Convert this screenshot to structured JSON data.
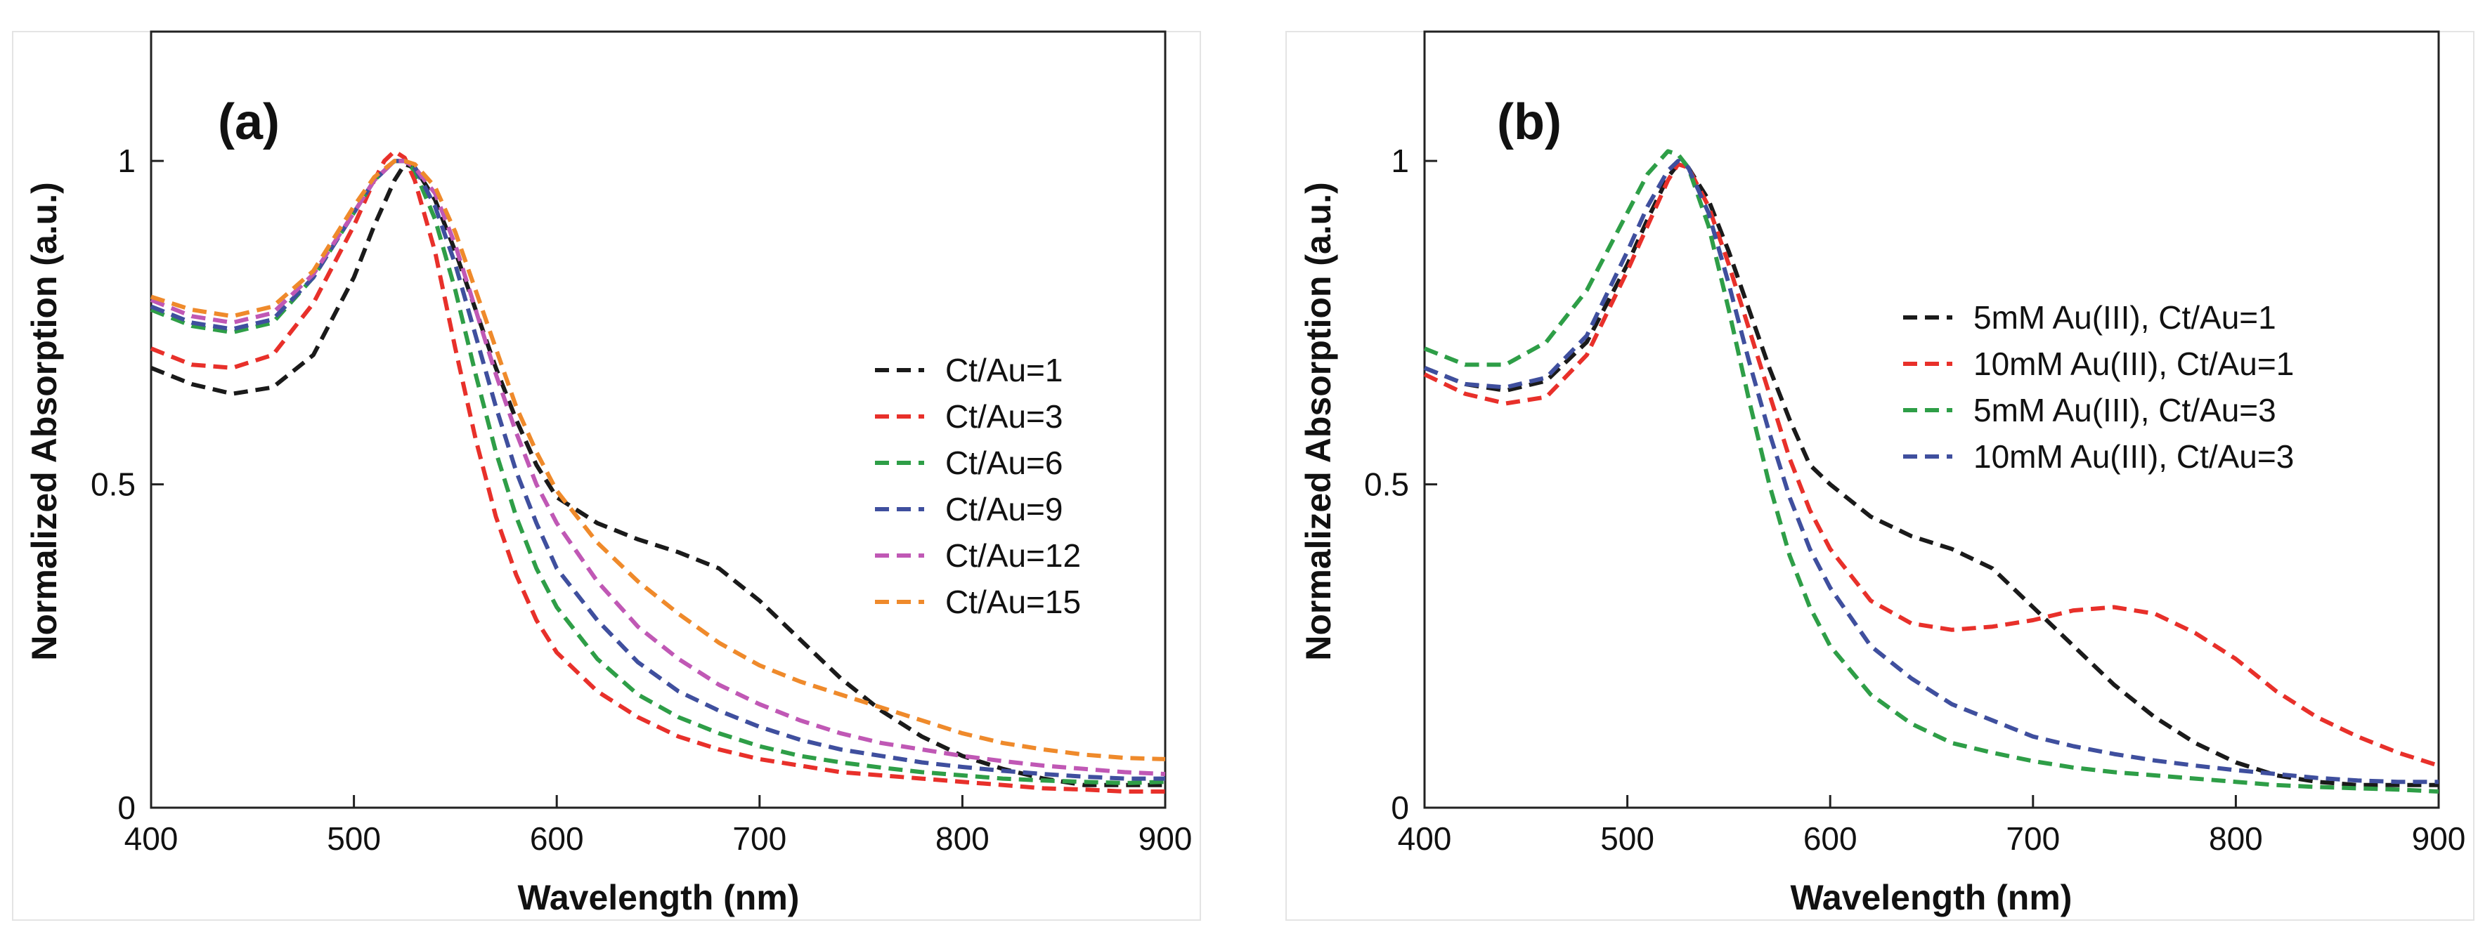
{
  "figure": {
    "panel_count": 2
  },
  "chart_data": [
    {
      "type": "line",
      "panel_label": "(a)",
      "xlabel": "Wavelength (nm)",
      "ylabel": "Normalized Absorption (a.u.)",
      "xlim": [
        400,
        900
      ],
      "ylim": [
        0,
        1.2
      ],
      "xticks": [
        400,
        500,
        600,
        700,
        800,
        900
      ],
      "xtick_labels": [
        "400",
        "500",
        "600",
        "700",
        "800",
        "900"
      ],
      "yticks": [
        0,
        0.5,
        1
      ],
      "ytick_labels": [
        "0",
        "0.5",
        "1"
      ],
      "grid": false,
      "legend_position": "right-middle",
      "series": [
        {
          "name": "Ct/Au=1",
          "color": "#1a1a1a",
          "x": [
            400,
            420,
            440,
            460,
            480,
            500,
            510,
            520,
            525,
            530,
            540,
            550,
            560,
            570,
            580,
            590,
            600,
            620,
            640,
            660,
            680,
            700,
            720,
            740,
            760,
            780,
            800,
            820,
            840,
            860,
            880,
            900
          ],
          "y": [
            0.68,
            0.655,
            0.64,
            0.65,
            0.7,
            0.82,
            0.9,
            0.97,
            0.995,
            0.99,
            0.94,
            0.86,
            0.77,
            0.68,
            0.6,
            0.53,
            0.48,
            0.44,
            0.415,
            0.395,
            0.37,
            0.32,
            0.26,
            0.2,
            0.15,
            0.11,
            0.08,
            0.06,
            0.045,
            0.035,
            0.035,
            0.035
          ]
        },
        {
          "name": "Ct/Au=3",
          "color": "#e8302a",
          "x": [
            400,
            420,
            440,
            460,
            480,
            500,
            510,
            515,
            520,
            525,
            530,
            540,
            550,
            560,
            570,
            580,
            590,
            600,
            620,
            640,
            660,
            680,
            700,
            720,
            740,
            760,
            780,
            800,
            820,
            840,
            860,
            880,
            900
          ],
          "y": [
            0.71,
            0.685,
            0.68,
            0.7,
            0.78,
            0.9,
            0.97,
            1.0,
            1.015,
            1.005,
            0.97,
            0.86,
            0.71,
            0.57,
            0.45,
            0.36,
            0.29,
            0.24,
            0.18,
            0.14,
            0.11,
            0.09,
            0.075,
            0.065,
            0.055,
            0.05,
            0.045,
            0.04,
            0.035,
            0.03,
            0.028,
            0.025,
            0.025
          ]
        },
        {
          "name": "Ct/Au=6",
          "color": "#2e9e47",
          "x": [
            400,
            420,
            440,
            460,
            480,
            500,
            510,
            520,
            525,
            530,
            540,
            550,
            560,
            570,
            580,
            590,
            600,
            620,
            640,
            660,
            680,
            700,
            720,
            740,
            760,
            780,
            800,
            820,
            840,
            860,
            880,
            900
          ],
          "y": [
            0.77,
            0.745,
            0.735,
            0.75,
            0.82,
            0.92,
            0.97,
            1.0,
            1.0,
            0.985,
            0.91,
            0.8,
            0.67,
            0.55,
            0.45,
            0.37,
            0.31,
            0.23,
            0.175,
            0.14,
            0.115,
            0.095,
            0.08,
            0.07,
            0.062,
            0.055,
            0.05,
            0.045,
            0.042,
            0.04,
            0.038,
            0.04
          ]
        },
        {
          "name": "Ct/Au=9",
          "color": "#3f4f9e",
          "x": [
            400,
            420,
            440,
            460,
            480,
            500,
            510,
            520,
            525,
            530,
            540,
            550,
            560,
            570,
            580,
            590,
            600,
            620,
            640,
            660,
            680,
            700,
            720,
            740,
            760,
            780,
            800,
            820,
            840,
            860,
            880,
            900
          ],
          "y": [
            0.775,
            0.75,
            0.74,
            0.755,
            0.82,
            0.92,
            0.97,
            1.0,
            1.0,
            0.99,
            0.93,
            0.84,
            0.73,
            0.62,
            0.52,
            0.44,
            0.37,
            0.29,
            0.225,
            0.18,
            0.15,
            0.125,
            0.105,
            0.09,
            0.08,
            0.07,
            0.063,
            0.057,
            0.052,
            0.048,
            0.045,
            0.045
          ]
        },
        {
          "name": "Ct/Au=12",
          "color": "#c058b5",
          "x": [
            400,
            420,
            440,
            460,
            480,
            500,
            510,
            520,
            525,
            530,
            540,
            550,
            560,
            570,
            580,
            590,
            600,
            620,
            640,
            660,
            680,
            700,
            720,
            740,
            760,
            780,
            800,
            820,
            840,
            860,
            880,
            900
          ],
          "y": [
            0.785,
            0.76,
            0.75,
            0.765,
            0.825,
            0.92,
            0.97,
            1.0,
            1.0,
            0.99,
            0.95,
            0.87,
            0.77,
            0.67,
            0.58,
            0.5,
            0.44,
            0.35,
            0.28,
            0.23,
            0.19,
            0.16,
            0.135,
            0.115,
            0.1,
            0.09,
            0.08,
            0.072,
            0.065,
            0.06,
            0.055,
            0.052
          ]
        },
        {
          "name": "Ct/Au=15",
          "color": "#ef8a2b",
          "x": [
            400,
            420,
            440,
            460,
            480,
            500,
            510,
            520,
            525,
            530,
            540,
            550,
            560,
            570,
            580,
            590,
            600,
            620,
            640,
            660,
            680,
            700,
            720,
            740,
            760,
            780,
            800,
            820,
            840,
            860,
            880,
            900
          ],
          "y": [
            0.79,
            0.77,
            0.76,
            0.775,
            0.83,
            0.93,
            0.975,
            1.0,
            1.0,
            0.995,
            0.96,
            0.89,
            0.8,
            0.71,
            0.62,
            0.55,
            0.49,
            0.41,
            0.35,
            0.3,
            0.255,
            0.22,
            0.195,
            0.175,
            0.155,
            0.135,
            0.115,
            0.1,
            0.09,
            0.082,
            0.077,
            0.075
          ]
        }
      ]
    },
    {
      "type": "line",
      "panel_label": "(b)",
      "xlabel": "Wavelength (nm)",
      "ylabel": "Normalized Absorption (a.u.)",
      "xlim": [
        400,
        900
      ],
      "ylim": [
        0,
        1.2
      ],
      "xticks": [
        400,
        500,
        600,
        700,
        800,
        900
      ],
      "xtick_labels": [
        "400",
        "500",
        "600",
        "700",
        "800",
        "900"
      ],
      "yticks": [
        0,
        0.5,
        1
      ],
      "ytick_labels": [
        "0",
        "0.5",
        "1"
      ],
      "grid": false,
      "legend_position": "right-upper",
      "series": [
        {
          "name": "5mM Au(III), Ct/Au=1",
          "color": "#1a1a1a",
          "x": [
            400,
            420,
            440,
            460,
            480,
            500,
            510,
            520,
            525,
            530,
            540,
            550,
            560,
            570,
            580,
            590,
            600,
            620,
            640,
            660,
            680,
            700,
            720,
            740,
            760,
            780,
            800,
            820,
            840,
            860,
            880,
            900
          ],
          "y": [
            0.68,
            0.655,
            0.645,
            0.66,
            0.72,
            0.84,
            0.91,
            0.975,
            0.995,
            0.99,
            0.94,
            0.86,
            0.77,
            0.68,
            0.6,
            0.53,
            0.5,
            0.45,
            0.42,
            0.4,
            0.37,
            0.31,
            0.25,
            0.19,
            0.14,
            0.1,
            0.07,
            0.05,
            0.04,
            0.035,
            0.035,
            0.035
          ]
        },
        {
          "name": "10mM Au(III), Ct/Au=1",
          "color": "#e8302a",
          "x": [
            400,
            420,
            440,
            460,
            480,
            500,
            510,
            520,
            525,
            530,
            540,
            550,
            560,
            570,
            580,
            590,
            600,
            620,
            640,
            660,
            680,
            700,
            720,
            740,
            760,
            780,
            800,
            820,
            840,
            860,
            880,
            900
          ],
          "y": [
            0.67,
            0.64,
            0.625,
            0.635,
            0.7,
            0.83,
            0.9,
            0.97,
            0.995,
            0.99,
            0.93,
            0.84,
            0.74,
            0.64,
            0.54,
            0.46,
            0.4,
            0.32,
            0.285,
            0.275,
            0.28,
            0.29,
            0.305,
            0.31,
            0.3,
            0.27,
            0.23,
            0.18,
            0.14,
            0.11,
            0.085,
            0.065
          ]
        },
        {
          "name": "5mM Au(III), Ct/Au=3",
          "color": "#2e9e47",
          "x": [
            400,
            420,
            440,
            460,
            480,
            500,
            510,
            520,
            525,
            530,
            540,
            550,
            560,
            570,
            580,
            590,
            600,
            620,
            640,
            660,
            680,
            700,
            720,
            740,
            760,
            780,
            800,
            820,
            840,
            860,
            880,
            900
          ],
          "y": [
            0.71,
            0.685,
            0.685,
            0.72,
            0.8,
            0.92,
            0.98,
            1.015,
            1.01,
            0.99,
            0.9,
            0.77,
            0.63,
            0.5,
            0.39,
            0.31,
            0.25,
            0.175,
            0.13,
            0.1,
            0.085,
            0.072,
            0.062,
            0.055,
            0.05,
            0.045,
            0.04,
            0.035,
            0.032,
            0.03,
            0.028,
            0.025
          ]
        },
        {
          "name": "10mM Au(III), Ct/Au=3",
          "color": "#3f4f9e",
          "x": [
            400,
            420,
            440,
            460,
            480,
            500,
            510,
            520,
            525,
            530,
            540,
            550,
            560,
            570,
            580,
            590,
            600,
            620,
            640,
            660,
            680,
            700,
            720,
            740,
            760,
            780,
            800,
            820,
            840,
            860,
            880,
            900
          ],
          "y": [
            0.68,
            0.655,
            0.65,
            0.665,
            0.73,
            0.86,
            0.93,
            0.985,
            1.0,
            0.99,
            0.92,
            0.81,
            0.69,
            0.58,
            0.48,
            0.4,
            0.34,
            0.25,
            0.2,
            0.16,
            0.135,
            0.11,
            0.095,
            0.083,
            0.073,
            0.065,
            0.058,
            0.052,
            0.046,
            0.042,
            0.04,
            0.04
          ]
        }
      ]
    }
  ]
}
